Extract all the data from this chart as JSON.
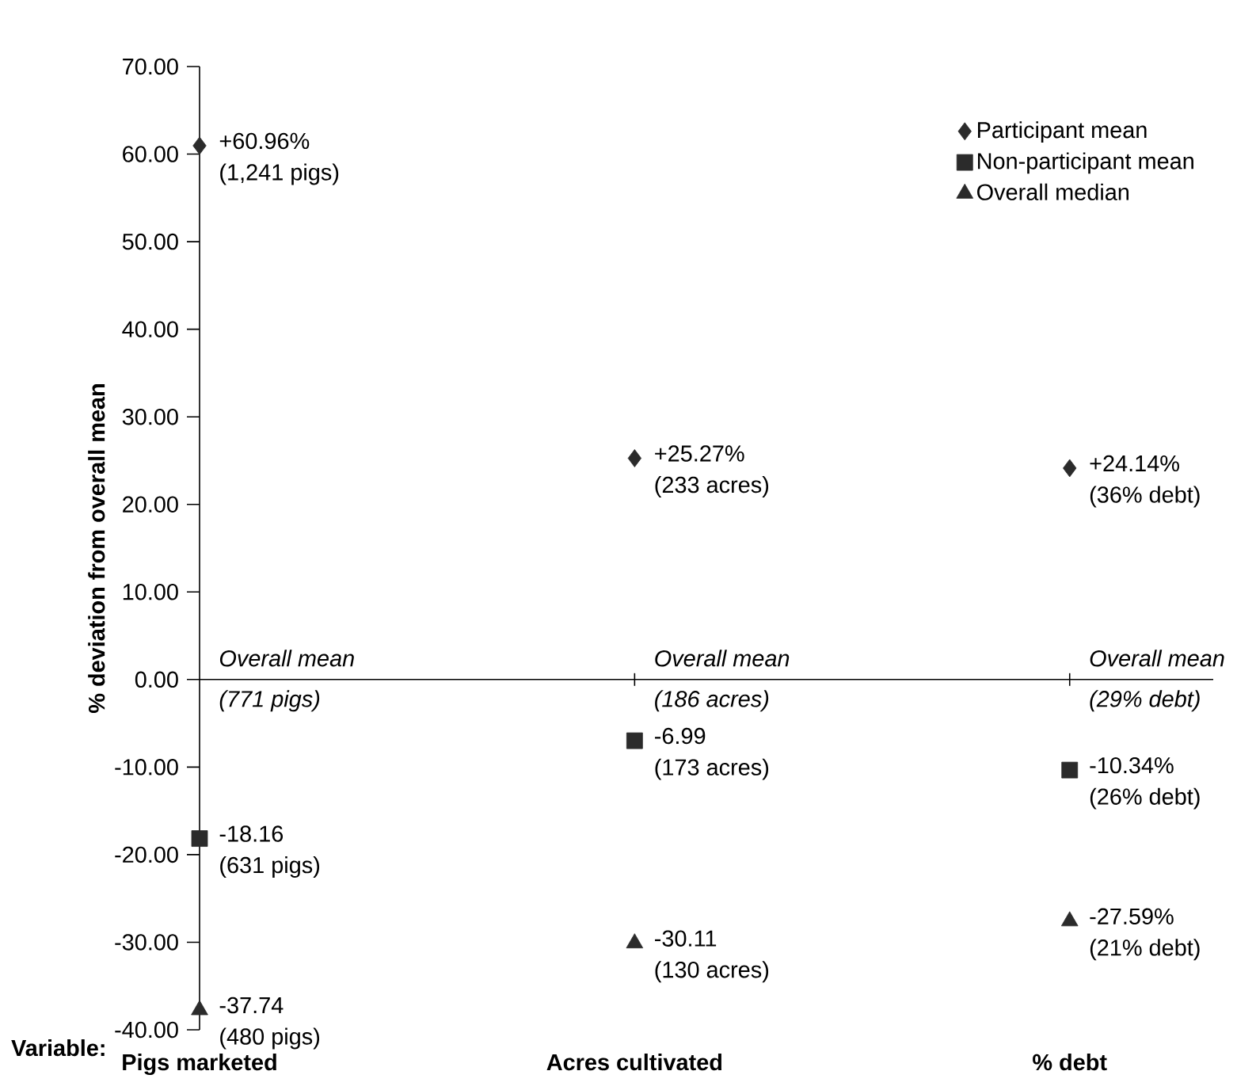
{
  "chart_data": {
    "type": "scatter",
    "xlabel": "Variable:",
    "ylabel": "% deviation from overall mean",
    "categories": [
      "Pigs marketed",
      "Acres cultivated",
      "% debt"
    ],
    "ylim": [
      -40,
      70
    ],
    "yticks": [
      {
        "value": -40,
        "label": "-40.00"
      },
      {
        "value": -30,
        "label": "-30.00"
      },
      {
        "value": -20,
        "label": "-20.00"
      },
      {
        "value": -10,
        "label": "-10.00"
      },
      {
        "value": 0,
        "label": "0.00"
      },
      {
        "value": 10,
        "label": "10.00"
      },
      {
        "value": 20,
        "label": "20.00"
      },
      {
        "value": 30,
        "label": "30.00"
      },
      {
        "value": 40,
        "label": "40.00"
      },
      {
        "value": 50,
        "label": "50.00"
      },
      {
        "value": 60,
        "label": "60.00"
      },
      {
        "value": 70,
        "label": "70.00"
      }
    ],
    "series": [
      {
        "name": "Participant mean",
        "color": "#2b2b2b",
        "marker": "diamond",
        "values": [
          60.96,
          25.27,
          24.14
        ],
        "value_labels": [
          "+60.96%",
          "+25.27%",
          "+24.14%"
        ]
      },
      {
        "name": "Non-participant mean",
        "color": "#2b2b2b",
        "marker": "square",
        "values": [
          -18.16,
          -6.99,
          -10.34
        ],
        "value_labels": [
          "-18.16",
          "-6.99",
          "-10.34%"
        ]
      },
      {
        "name": "Overall median",
        "color": "#2b2b2b",
        "marker": "triangle",
        "values": [
          -37.74,
          -30.11,
          -27.59
        ],
        "value_labels": [
          "-37.74",
          "-30.11",
          "-27.59%"
        ]
      }
    ],
    "ref_lines": [
      {
        "axis": "y",
        "value": 0
      }
    ],
    "annotations": [
      {
        "text": "(1,241 pigs)",
        "x": "Pigs marketed",
        "y": 60.96
      },
      {
        "text": "(233 acres)",
        "x": "Acres cultivated",
        "y": 25.27
      },
      {
        "text": "(36% debt)",
        "x": "% debt",
        "y": 24.14
      },
      {
        "text": "(631 pigs)",
        "x": "Pigs marketed",
        "y": -18.16
      },
      {
        "text": "(173 acres)",
        "x": "Acres cultivated",
        "y": -6.99
      },
      {
        "text": "(26% debt)",
        "x": "% debt",
        "y": -10.34
      },
      {
        "text": "(480 pigs)",
        "x": "Pigs marketed",
        "y": -37.74
      },
      {
        "text": "(130 acres)",
        "x": "Acres cultivated",
        "y": -30.11
      },
      {
        "text": "(21% debt)",
        "x": "% debt",
        "y": -27.59
      },
      {
        "text": "Overall mean",
        "x": "Pigs marketed",
        "y": 0
      },
      {
        "text": "(771 pigs)",
        "x": "Pigs marketed",
        "y": 0
      },
      {
        "text": "Overall mean",
        "x": "Acres cultivated",
        "y": 0
      },
      {
        "text": "(186 acres)",
        "x": "Acres cultivated",
        "y": 0
      },
      {
        "text": "Overall mean",
        "x": "% debt",
        "y": 0
      },
      {
        "text": "(29% debt)",
        "x": "% debt",
        "y": 0
      }
    ],
    "legend": "top right"
  }
}
